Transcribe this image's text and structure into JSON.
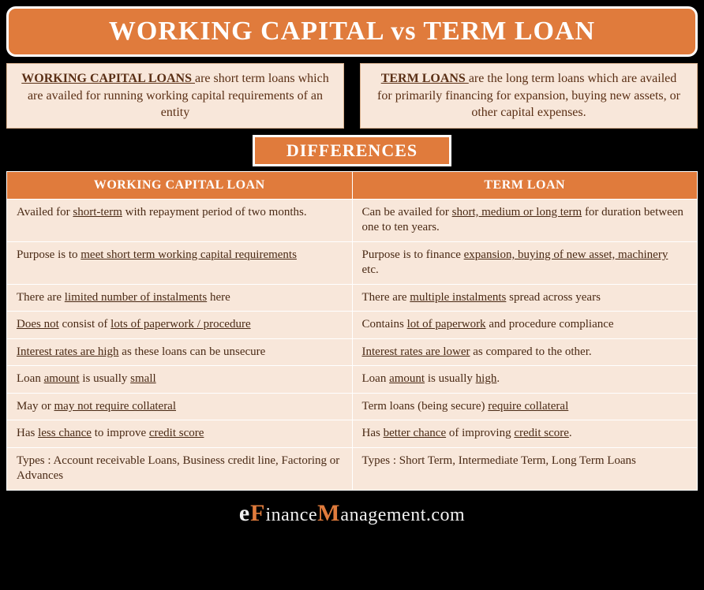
{
  "colors": {
    "accent": "#e07b3c",
    "panel_bg": "#f8e7da",
    "page_bg": "#000000",
    "text_dark": "#4a2a15",
    "border_light": "#ffffff"
  },
  "title": "WORKING CAPITAL vs TERM LOAN",
  "definitions": {
    "left": {
      "lead": "WORKING CAPITAL LOANS ",
      "rest": "are short term loans which are availed for running working capital requirements of an entity"
    },
    "right": {
      "lead": "TERM LOANS ",
      "rest": "are the long term loans which are availed for primarily financing for expansion, buying new assets, or other capital expenses."
    }
  },
  "diff_label": "DIFFERENCES",
  "table": {
    "headers": [
      "WORKING CAPITAL LOAN",
      "TERM LOAN"
    ],
    "rows": [
      {
        "left": [
          {
            "t": "Availed for "
          },
          {
            "t": "short-term",
            "u": true
          },
          {
            "t": " with repayment period of two months."
          }
        ],
        "right": [
          {
            "t": "Can be availed for "
          },
          {
            "t": "short, medium or long term",
            "u": true
          },
          {
            "t": " for duration between one to ten years."
          }
        ]
      },
      {
        "left": [
          {
            "t": "Purpose is to "
          },
          {
            "t": "meet short term working capital requirements",
            "u": true
          }
        ],
        "right": [
          {
            "t": "Purpose is to finance "
          },
          {
            "t": "expansion, buying of new asset, machinery",
            "u": true
          },
          {
            "t": " etc."
          }
        ]
      },
      {
        "left": [
          {
            "t": "There are "
          },
          {
            "t": "limited number of instalments",
            "u": true
          },
          {
            "t": " here"
          }
        ],
        "right": [
          {
            "t": "There are "
          },
          {
            "t": "multiple instalments",
            "u": true
          },
          {
            "t": " spread across years"
          }
        ]
      },
      {
        "left": [
          {
            "t": "Does not",
            "u": true
          },
          {
            "t": " consist of "
          },
          {
            "t": "lots of paperwork / procedure",
            "u": true
          }
        ],
        "right": [
          {
            "t": "Contains "
          },
          {
            "t": "lot of paperwork",
            "u": true
          },
          {
            "t": " and procedure compliance"
          }
        ]
      },
      {
        "left": [
          {
            "t": "Interest rates are high",
            "u": true
          },
          {
            "t": " as these loans can be unsecure"
          }
        ],
        "right": [
          {
            "t": "Interest rates are lower",
            "u": true
          },
          {
            "t": " as compared to the other."
          }
        ]
      },
      {
        "left": [
          {
            "t": "Loan "
          },
          {
            "t": "amount",
            "u": true
          },
          {
            "t": " is usually "
          },
          {
            "t": "small",
            "u": true
          }
        ],
        "right": [
          {
            "t": "Loan "
          },
          {
            "t": "amount",
            "u": true
          },
          {
            "t": " is usually "
          },
          {
            "t": "high",
            "u": true
          },
          {
            "t": "."
          }
        ]
      },
      {
        "left": [
          {
            "t": "May or "
          },
          {
            "t": "may not require collateral",
            "u": true
          }
        ],
        "right": [
          {
            "t": "Term loans (being secure) "
          },
          {
            "t": "require collateral",
            "u": true
          }
        ]
      },
      {
        "left": [
          {
            "t": "Has "
          },
          {
            "t": "less chance",
            "u": true
          },
          {
            "t": " to improve "
          },
          {
            "t": "credit score",
            "u": true
          }
        ],
        "right": [
          {
            "t": "Has "
          },
          {
            "t": "better chance",
            "u": true
          },
          {
            "t": " of improving "
          },
          {
            "t": "credit score",
            "u": true
          },
          {
            "t": "."
          }
        ]
      },
      {
        "left": [
          {
            "t": "Types : Account receivable Loans, Business credit line, Factoring or Advances"
          }
        ],
        "right": [
          {
            "t": "Types : Short Term, Intermediate Term, Long Term Loans"
          }
        ]
      }
    ]
  },
  "logo": {
    "e1": "e",
    "f": "F",
    "inance": "inance",
    "m": "M",
    "tail": "anagement.com"
  }
}
